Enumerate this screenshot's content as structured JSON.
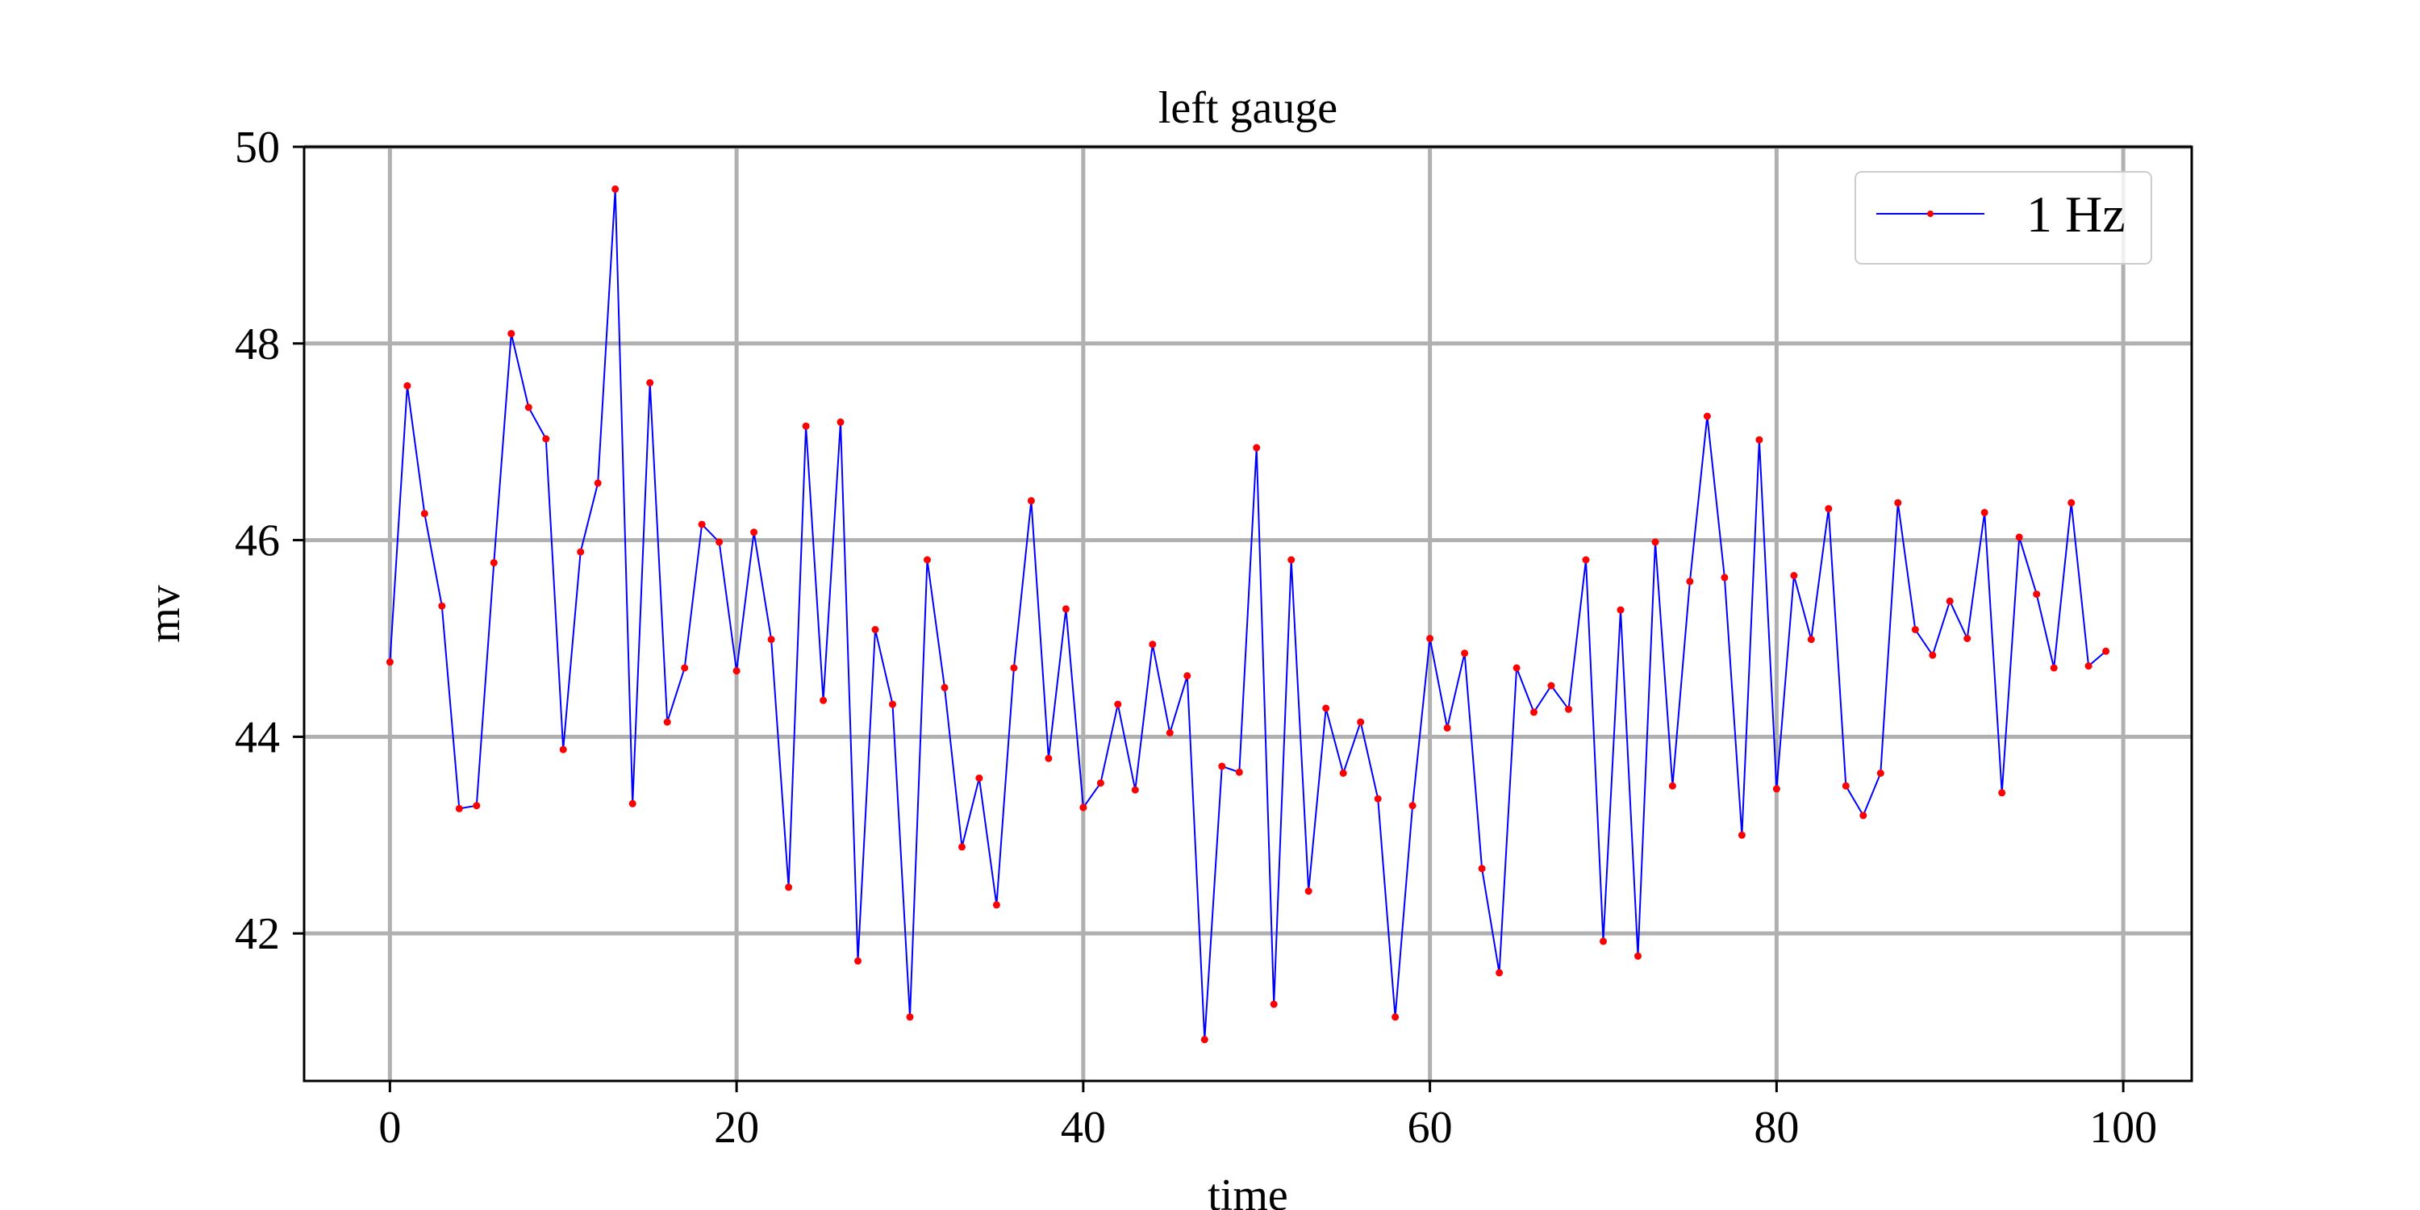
{
  "chart_data": {
    "type": "line",
    "title": "left gauge",
    "xlabel": "time",
    "ylabel": "mv",
    "xlim": [
      -4.95,
      103.95
    ],
    "ylim": [
      40.5,
      50
    ],
    "xticks": [
      0,
      20,
      40,
      60,
      80,
      100
    ],
    "yticks": [
      42,
      44,
      46,
      48,
      50
    ],
    "grid": true,
    "legend_position": "top-right",
    "colors": {
      "line": "#0000ff",
      "marker": "#ff0000",
      "grid": "#b0b0b0"
    },
    "series": [
      {
        "name": "1 Hz",
        "x": [
          0,
          1,
          2,
          3,
          4,
          5,
          6,
          7,
          8,
          9,
          10,
          11,
          12,
          13,
          14,
          15,
          16,
          17,
          18,
          19,
          20,
          21,
          22,
          23,
          24,
          25,
          26,
          27,
          28,
          29,
          30,
          31,
          32,
          33,
          34,
          35,
          36,
          37,
          38,
          39,
          40,
          41,
          42,
          43,
          44,
          45,
          46,
          47,
          48,
          49,
          50,
          51,
          52,
          53,
          54,
          55,
          56,
          57,
          58,
          59,
          60,
          61,
          62,
          63,
          64,
          65,
          66,
          67,
          68,
          69,
          70,
          71,
          72,
          73,
          74,
          75,
          76,
          77,
          78,
          79,
          80,
          81,
          82,
          83,
          84,
          85,
          86,
          87,
          88,
          89,
          90,
          91,
          92,
          93,
          94,
          95,
          96,
          97,
          98,
          99
        ],
        "y": [
          44.76,
          47.57,
          46.27,
          45.33,
          43.27,
          43.3,
          45.77,
          48.1,
          47.35,
          47.03,
          43.87,
          45.88,
          46.58,
          49.57,
          43.32,
          47.6,
          44.15,
          44.7,
          46.16,
          45.98,
          44.67,
          46.08,
          44.99,
          42.47,
          47.16,
          44.37,
          47.2,
          41.72,
          45.09,
          44.33,
          41.15,
          45.8,
          44.5,
          42.88,
          43.58,
          42.29,
          44.7,
          46.4,
          43.78,
          45.3,
          43.28,
          43.53,
          44.33,
          43.46,
          44.94,
          44.04,
          44.62,
          40.92,
          43.7,
          43.64,
          46.94,
          41.28,
          45.8,
          42.43,
          44.29,
          43.63,
          44.15,
          43.37,
          41.15,
          43.3,
          45.0,
          44.09,
          44.85,
          42.66,
          41.6,
          44.7,
          44.25,
          44.52,
          44.28,
          45.8,
          41.92,
          45.29,
          41.77,
          45.98,
          43.5,
          45.58,
          47.26,
          45.62,
          43.0,
          47.02,
          43.47,
          45.64,
          44.99,
          46.32,
          43.5,
          43.2,
          43.63,
          46.38,
          45.09,
          44.83,
          45.38,
          45.0,
          46.28,
          43.43,
          46.03,
          45.45,
          44.7,
          46.38,
          44.72,
          44.87
        ]
      }
    ]
  }
}
